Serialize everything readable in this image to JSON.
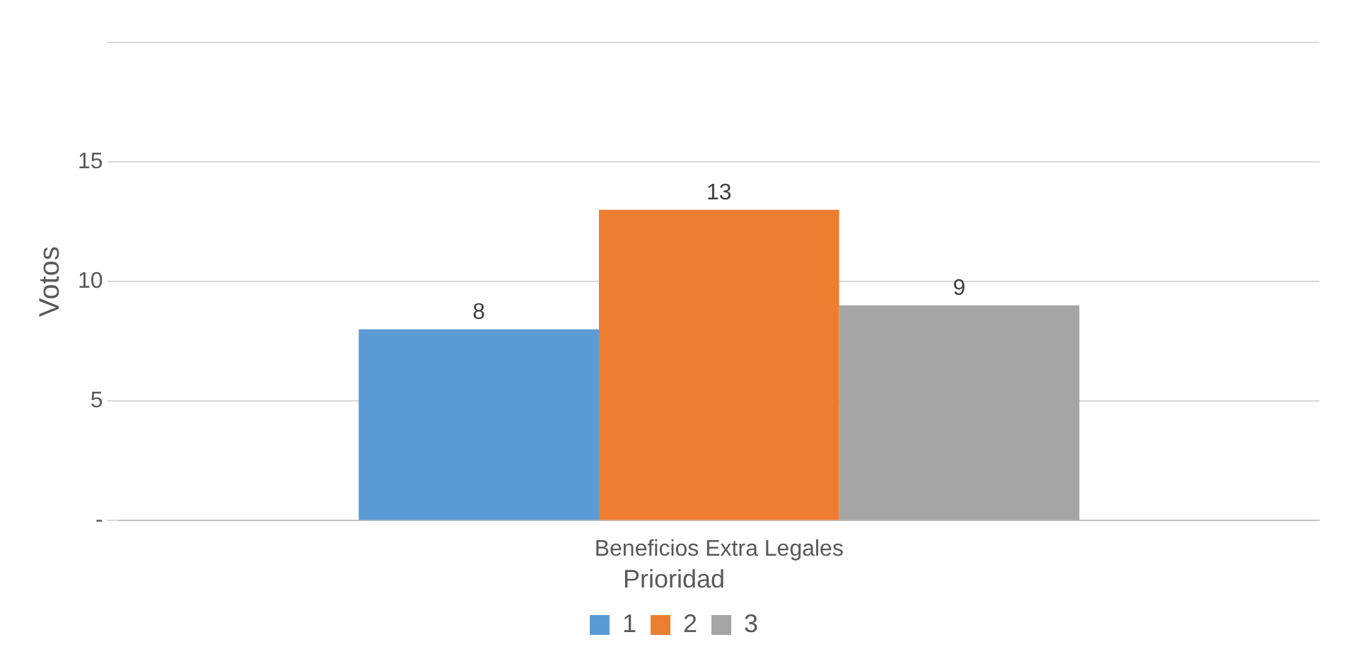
{
  "chart_data": {
    "type": "bar",
    "ylabel": "Votos",
    "legend_title": "Prioridad",
    "categories": [
      "Beneficios Extra Legales"
    ],
    "series": [
      {
        "name": "1",
        "color": "#5b9bd5",
        "values": [
          8
        ]
      },
      {
        "name": "2",
        "color": "#ed7d31",
        "values": [
          13
        ]
      },
      {
        "name": "3",
        "color": "#a5a5a5",
        "values": [
          9
        ]
      }
    ],
    "ylim": [
      0,
      20
    ],
    "yticks": [
      {
        "value": 0,
        "label": "-"
      },
      5,
      10,
      15,
      {
        "value": 20,
        "label": null
      }
    ],
    "grid": "y",
    "legend": "bottom",
    "data_labels": true
  }
}
